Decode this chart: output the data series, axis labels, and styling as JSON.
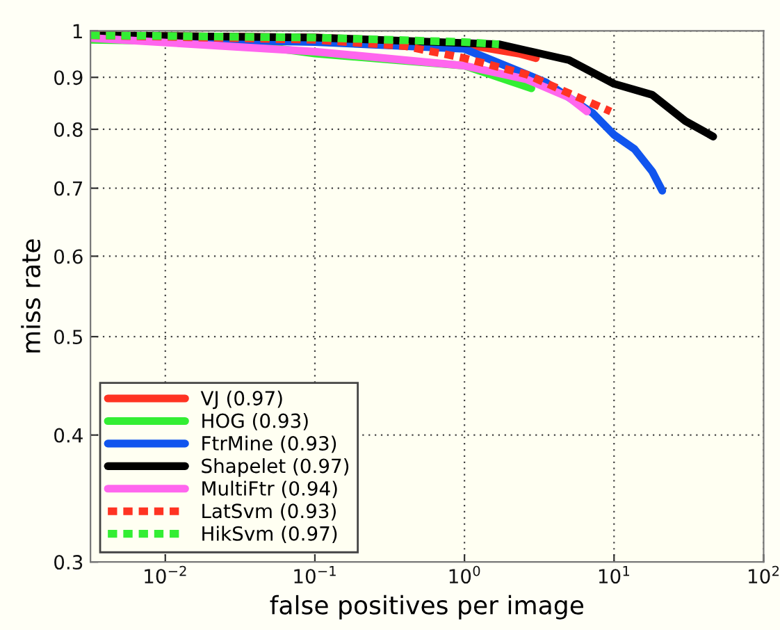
{
  "chart_data": {
    "type": "line",
    "xlabel": "false positives per image",
    "ylabel": "miss rate",
    "log": "xy",
    "grid": true,
    "legend": "bottom left",
    "line_style": "solid",
    "marker": "none",
    "xlim": [
      0.00316,
      100
    ],
    "ylim": [
      0.3,
      1
    ],
    "xticks": [
      {
        "value": 0.01,
        "label": "10$^{−2}$"
      },
      {
        "value": 0.1,
        "label": "10$^{−1}$"
      },
      {
        "value": 1,
        "label": "10$^{0}$"
      },
      {
        "value": 10,
        "label": "10$^{1}$"
      },
      {
        "value": 100,
        "label": "10$^{2}$"
      }
    ],
    "yticks": [
      0.3,
      0.4,
      0.5,
      0.6,
      0.7,
      0.8,
      0.9,
      1
    ],
    "series": [
      {
        "name": "VJ (0.97)",
        "color": "#ff3322",
        "x": [
          0.00316,
          0.1,
          1.0,
          2.3,
          3.0
        ],
        "values": [
          0.99,
          0.985,
          0.97,
          0.95,
          0.94
        ]
      },
      {
        "name": "HOG (0.93)",
        "color": "#33ee33",
        "x": [
          0.00316,
          0.027,
          0.1,
          1.0,
          1.7,
          2.8
        ],
        "values": [
          0.98,
          0.975,
          0.95,
          0.924,
          0.9,
          0.878
        ]
      },
      {
        "name": "FtrMine (0.93)",
        "color": "#1155ee",
        "x": [
          0.00316,
          0.1,
          1.0,
          3.5,
          7.2,
          10,
          13.7,
          18,
          21
        ],
        "values": [
          0.985,
          0.975,
          0.96,
          0.89,
          0.83,
          0.79,
          0.765,
          0.727,
          0.696
        ]
      },
      {
        "name": "Shapelet (0.97)",
        "color": "#000000",
        "x": [
          0.00316,
          0.1,
          1.7,
          5,
          10,
          18,
          30,
          46
        ],
        "values": [
          0.99,
          0.985,
          0.97,
          0.936,
          0.887,
          0.865,
          0.815,
          0.787
        ]
      },
      {
        "name": "MultiFtr (0.94)",
        "color": "#ff66ee",
        "x": [
          0.00316,
          0.1,
          1.0,
          2.6,
          5,
          6.6
        ],
        "values": [
          0.984,
          0.954,
          0.924,
          0.896,
          0.86,
          0.833
        ]
      },
      {
        "name": "LatSvm (0.93)",
        "color": "#ff3322",
        "line_style": "dashed",
        "x": [
          0.00316,
          0.1,
          0.4,
          1.0,
          2.6,
          5,
          9.5
        ],
        "values": [
          0.99,
          0.98,
          0.966,
          0.94,
          0.906,
          0.868,
          0.833
        ]
      },
      {
        "name": "HikSvm (0.97)",
        "color": "#33ee33",
        "line_style": "dashed",
        "x": [
          0.00316,
          0.1,
          1.0,
          1.7
        ],
        "values": [
          0.99,
          0.985,
          0.975,
          0.97
        ]
      }
    ]
  }
}
